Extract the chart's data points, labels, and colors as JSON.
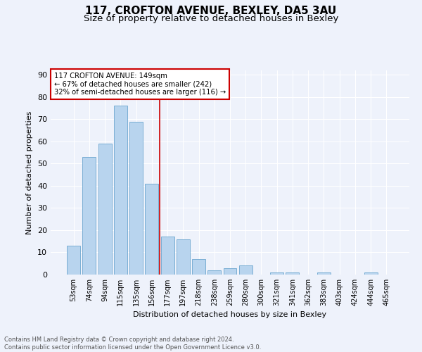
{
  "title1": "117, CROFTON AVENUE, BEXLEY, DA5 3AU",
  "title2": "Size of property relative to detached houses in Bexley",
  "xlabel": "Distribution of detached houses by size in Bexley",
  "ylabel": "Number of detached properties",
  "categories": [
    "53sqm",
    "74sqm",
    "94sqm",
    "115sqm",
    "135sqm",
    "156sqm",
    "177sqm",
    "197sqm",
    "218sqm",
    "238sqm",
    "259sqm",
    "280sqm",
    "300sqm",
    "321sqm",
    "341sqm",
    "362sqm",
    "383sqm",
    "403sqm",
    "424sqm",
    "444sqm",
    "465sqm"
  ],
  "values": [
    13,
    53,
    59,
    76,
    69,
    41,
    17,
    16,
    7,
    2,
    3,
    4,
    0,
    1,
    1,
    0,
    1,
    0,
    0,
    1,
    0
  ],
  "bar_color": "#b8d4ee",
  "bar_edge_color": "#7aaed4",
  "vline_x": 5.5,
  "vline_color": "#cc0000",
  "annotation_text": "117 CROFTON AVENUE: 149sqm\n← 67% of detached houses are smaller (242)\n32% of semi-detached houses are larger (116) →",
  "annotation_box_color": "#ffffff",
  "annotation_box_edge": "#cc0000",
  "ylim": [
    0,
    92
  ],
  "yticks": [
    0,
    10,
    20,
    30,
    40,
    50,
    60,
    70,
    80,
    90
  ],
  "background_color": "#eef2fb",
  "footer": "Contains HM Land Registry data © Crown copyright and database right 2024.\nContains public sector information licensed under the Open Government Licence v3.0.",
  "grid_color": "#ffffff",
  "title1_fontsize": 11,
  "title2_fontsize": 9.5
}
